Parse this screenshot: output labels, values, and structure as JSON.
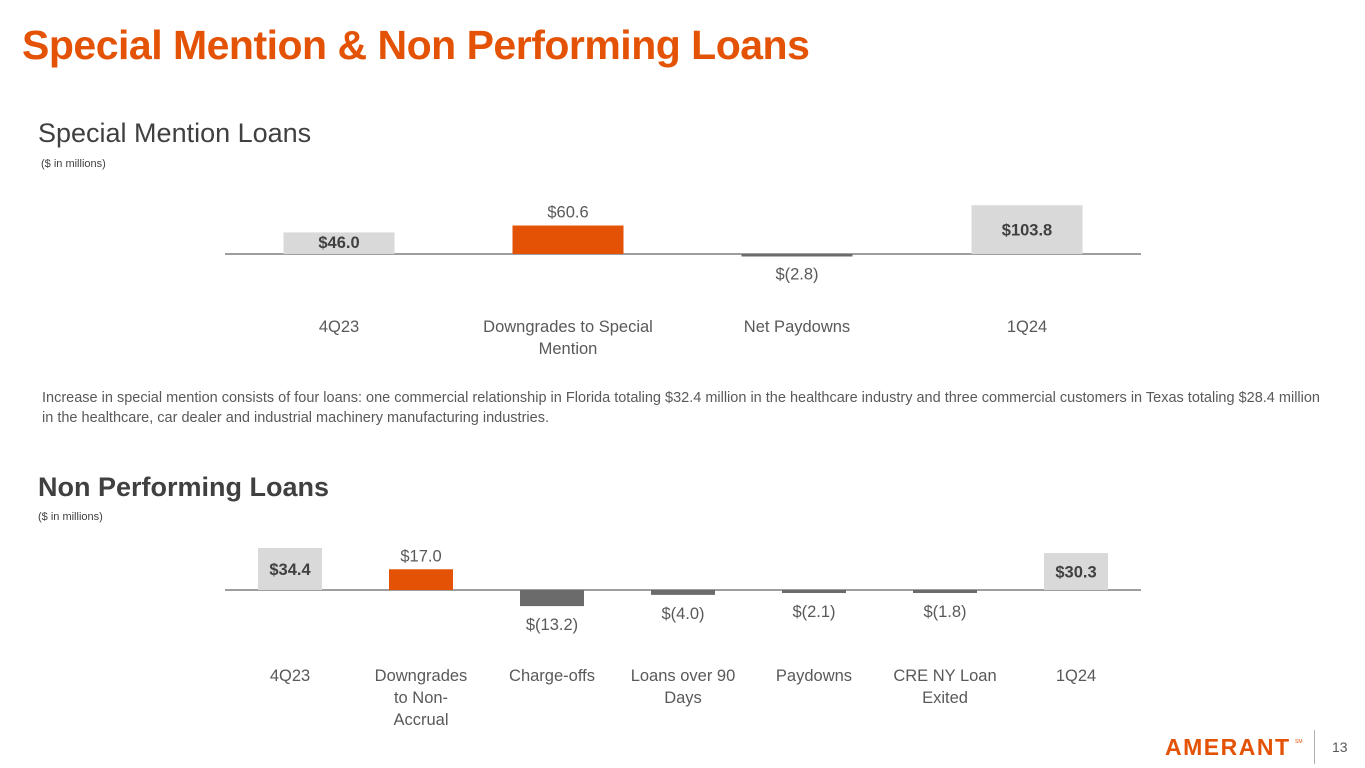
{
  "page": {
    "title": "Special Mention & Non Performing Loans",
    "page_number": "13",
    "logo_text": "AMERANT",
    "logo_mark": "SM"
  },
  "colors": {
    "accent": "#e35205",
    "total_bar": "#d9d9d9",
    "negative_bar": "#6b6b6b",
    "axis": "#7f7f7f",
    "text": "#595959"
  },
  "special_mention": {
    "title": "Special Mention Loans",
    "unit": "($ in millions)",
    "note": "Increase in special mention consists of four loans: one commercial relationship in Florida totaling $32.4 million in the healthcare industry and three commercial customers in Texas totaling $28.4 million in the healthcare, car dealer and industrial machinery manufacturing industries."
  },
  "non_performing": {
    "title": "Non Performing Loans",
    "unit": "($ in millions)"
  },
  "chart_data": [
    {
      "type": "bar",
      "subtype": "waterfall-deltas",
      "title": "Special Mention Loans",
      "ylabel": "($ in millions)",
      "categories": [
        [
          "4Q23"
        ],
        [
          "Downgrades to Special",
          "Mention"
        ],
        [
          "Net Paydowns"
        ],
        [
          "1Q24"
        ]
      ],
      "values": [
        46.0,
        60.6,
        -2.8,
        103.8
      ],
      "labels": [
        "$46.0",
        "$60.6",
        "$(2.8)",
        "$103.8"
      ],
      "kinds": [
        "total",
        "increase",
        "decrease",
        "total"
      ],
      "ylim": [
        -3,
        110
      ],
      "grid": false,
      "legend": "none"
    },
    {
      "type": "bar",
      "subtype": "waterfall-deltas",
      "title": "Non Performing Loans",
      "ylabel": "($ in millions)",
      "categories": [
        [
          "4Q23"
        ],
        [
          "Downgrades",
          "to Non-",
          "Accrual"
        ],
        [
          "Charge-offs"
        ],
        [
          "Loans over 90",
          "Days"
        ],
        [
          "Paydowns"
        ],
        [
          "CRE NY Loan",
          "Exited"
        ],
        [
          "1Q24"
        ]
      ],
      "values": [
        34.4,
        17.0,
        -13.2,
        -4.0,
        -2.1,
        -1.8,
        30.3
      ],
      "labels": [
        "$34.4",
        "$17.0",
        "$(13.2)",
        "$(4.0)",
        "$(2.1)",
        "$(1.8)",
        "$30.3"
      ],
      "kinds": [
        "total",
        "increase",
        "decrease",
        "decrease",
        "decrease",
        "decrease",
        "total"
      ],
      "ylim": [
        -14,
        36
      ],
      "grid": false,
      "legend": "none"
    }
  ]
}
